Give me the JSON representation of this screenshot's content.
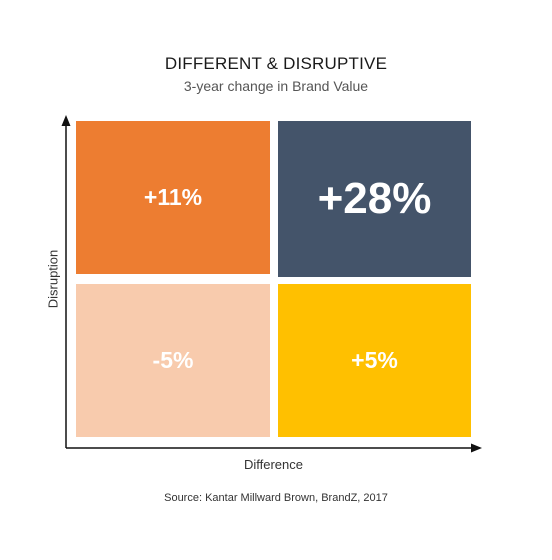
{
  "title": "DIFFERENT & DISRUPTIVE",
  "subtitle": "3-year change in Brand Value",
  "axes": {
    "x_label": "Difference",
    "y_label": "Disruption"
  },
  "quadrants": {
    "top_left": {
      "value": "+11%",
      "color": "#ED7D31"
    },
    "top_right": {
      "value": "+28%",
      "color": "#44546A"
    },
    "bottom_left": {
      "value": "-5%",
      "color": "#F8CBAD"
    },
    "bottom_right": {
      "value": "+5%",
      "color": "#FFC000"
    }
  },
  "source": "Source: Kantar Millward Brown, BrandZ, 2017"
}
